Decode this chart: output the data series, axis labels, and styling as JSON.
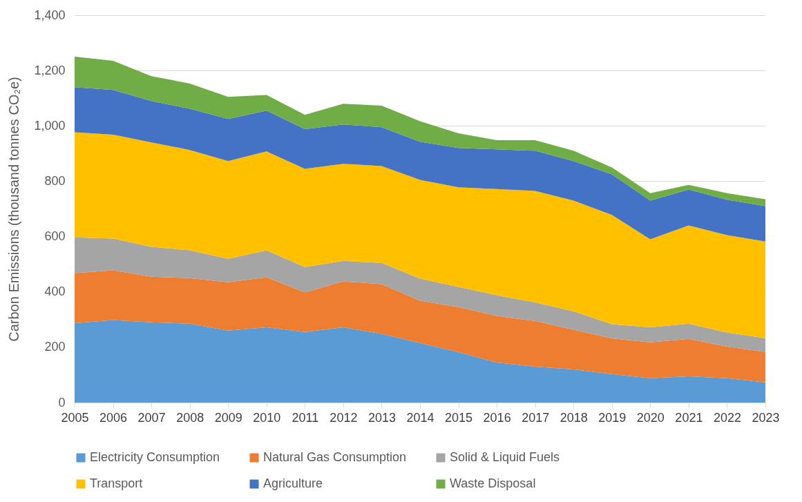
{
  "chart_data": {
    "type": "area",
    "stacked": true,
    "ylabel": "Carbon Emissions (thousand tonnes CO₂e)",
    "categories": [
      "2005",
      "2006",
      "2007",
      "2008",
      "2009",
      "2010",
      "2011",
      "2012",
      "2013",
      "2014",
      "2015",
      "2016",
      "2017",
      "2018",
      "2019",
      "2020",
      "2021",
      "2022",
      "2023"
    ],
    "ylim": [
      0,
      1400
    ],
    "yticks": [
      0,
      200,
      400,
      600,
      800,
      {
        "value": 1000,
        "label": "1,000"
      },
      {
        "value": 1200,
        "label": "1,200"
      },
      {
        "value": 1400,
        "label": "1,400"
      }
    ],
    "grid": "y",
    "legend": "bottom",
    "series": [
      {
        "name": "Electricity Consumption",
        "color": "#5b9bd5",
        "values": [
          287,
          298,
          290,
          285,
          260,
          272,
          255,
          272,
          248,
          215,
          182,
          145,
          130,
          120,
          103,
          88,
          95,
          88,
          73
        ]
      },
      {
        "name": "Natural Gas Consumption",
        "color": "#ed7d31",
        "values": [
          181,
          180,
          165,
          165,
          175,
          181,
          143,
          166,
          180,
          153,
          163,
          168,
          165,
          143,
          129,
          130,
          135,
          114,
          110
        ]
      },
      {
        "name": "Solid & Liquid Fuels",
        "color": "#a5a5a5",
        "values": [
          129,
          115,
          108,
          100,
          85,
          97,
          92,
          74,
          77,
          80,
          73,
          75,
          67,
          67,
          51,
          54,
          55,
          51,
          50
        ]
      },
      {
        "name": "Transport",
        "color": "#ffc000",
        "values": [
          380,
          375,
          377,
          363,
          353,
          358,
          355,
          351,
          350,
          357,
          360,
          384,
          403,
          400,
          395,
          318,
          355,
          352,
          349
        ]
      },
      {
        "name": "Agriculture",
        "color": "#4472c4",
        "values": [
          163,
          162,
          150,
          149,
          152,
          147,
          143,
          142,
          140,
          138,
          142,
          143,
          145,
          143,
          147,
          140,
          130,
          128,
          128
        ]
      },
      {
        "name": "Waste Disposal",
        "color": "#70ad47",
        "values": [
          110,
          105,
          90,
          91,
          80,
          57,
          52,
          75,
          78,
          74,
          53,
          33,
          38,
          37,
          25,
          27,
          17,
          24,
          25
        ]
      }
    ]
  }
}
